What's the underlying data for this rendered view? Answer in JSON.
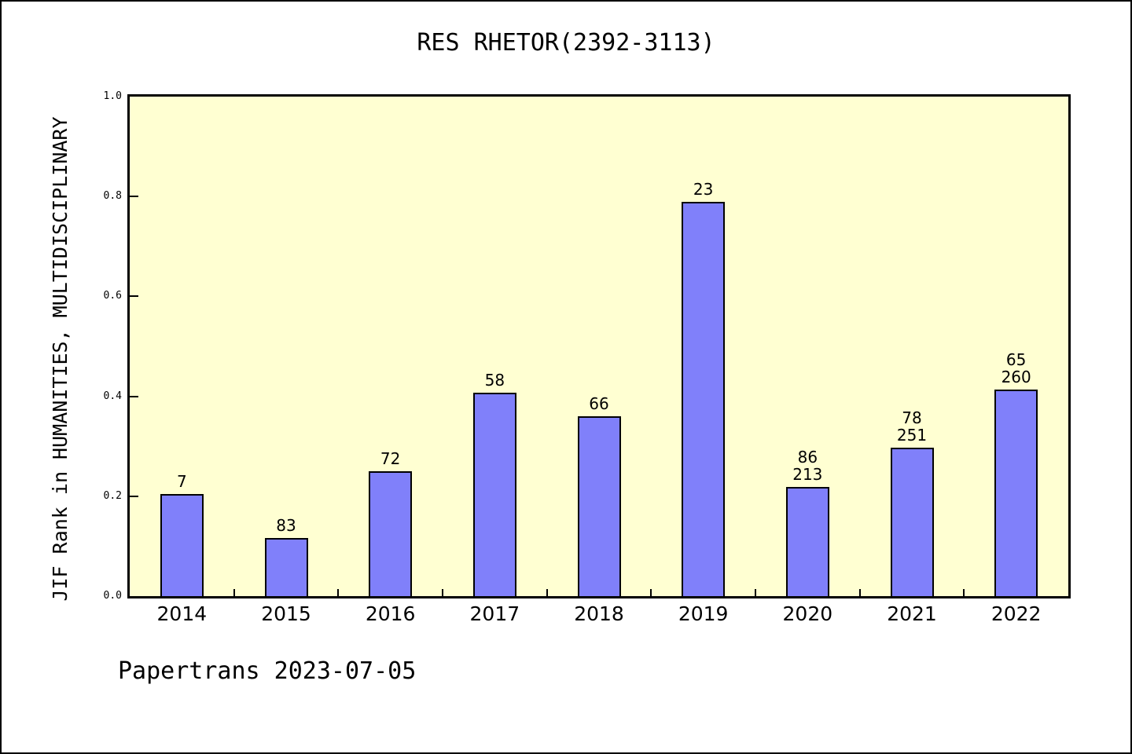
{
  "page": {
    "footer": "Papertrans 2023-07-05"
  },
  "chart_data": {
    "type": "bar",
    "title": "RES RHETOR(2392-3113)",
    "xlabel": "",
    "ylabel": "JIF Rank in HUMANITIES, MULTIDISCIPLINARY",
    "categories": [
      "2014",
      "2015",
      "2016",
      "2017",
      "2018",
      "2019",
      "2020",
      "2021",
      "2022"
    ],
    "values": [
      0.205,
      0.116,
      0.25,
      0.408,
      0.36,
      0.79,
      0.219,
      0.297,
      0.414
    ],
    "bar_labels": [
      [
        "7"
      ],
      [
        "83"
      ],
      [
        "72"
      ],
      [
        "58"
      ],
      [
        "66"
      ],
      [
        "23"
      ],
      [
        "86",
        "213"
      ],
      [
        "78",
        "251"
      ],
      [
        "65",
        "260"
      ]
    ],
    "ylim": [
      0,
      1
    ],
    "yticks": [
      "0.0",
      "0.2",
      "0.4",
      "0.6",
      "0.8",
      "1.0"
    ],
    "grid": false,
    "legend": false,
    "tick_direction": "in",
    "colors": {
      "bar_fill": "#8080FA",
      "bar_border": "#000000",
      "plot_background": "#FFFFD2",
      "frame": "#000000",
      "text": "#000000"
    }
  }
}
